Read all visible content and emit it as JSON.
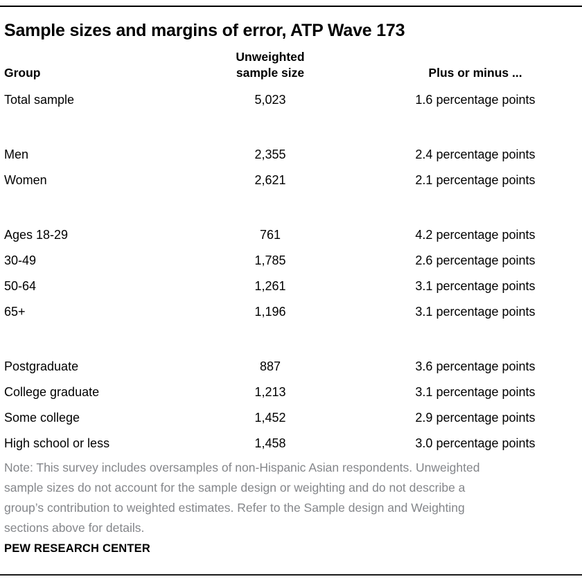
{
  "title": "Sample sizes and margins of error, ATP Wave 173",
  "columns": {
    "group": "Group",
    "n": "Unweighted\nsample size",
    "moe": "Plus or minus ..."
  },
  "rows": [
    {
      "group": "Total sample",
      "n": "5,023",
      "moe": "1.6 percentage points"
    },
    {
      "group": "Men",
      "n": "2,355",
      "moe": "2.4 percentage points"
    },
    {
      "group": "Women",
      "n": "2,621",
      "moe": "2.1 percentage points"
    },
    {
      "group": "Ages 18-29",
      "n": "761",
      "moe": "4.2 percentage points"
    },
    {
      "group": "30-49",
      "n": "1,785",
      "moe": "2.6 percentage points"
    },
    {
      "group": "50-64",
      "n": "1,261",
      "moe": "3.1 percentage points"
    },
    {
      "group": "65+",
      "n": "1,196",
      "moe": "3.1 percentage points"
    },
    {
      "group": "Postgraduate",
      "n": "887",
      "moe": "3.6 percentage points"
    },
    {
      "group": "College graduate",
      "n": "1,213",
      "moe": "3.1 percentage points"
    },
    {
      "group": "Some college",
      "n": "1,452",
      "moe": "2.9 percentage points"
    },
    {
      "group": "High school or less",
      "n": "1,458",
      "moe": "3.0 percentage points"
    }
  ],
  "note": "Note: This survey includes oversamples of non-Hispanic Asian respondents. Unweighted\nsample sizes do not account for the sample design or weighting and do not describe a\ngroup’s contribution to weighted estimates. Refer to the Sample design and Weighting\nsections above for details.",
  "source": "PEW RESEARCH CENTER",
  "colors": {
    "text": "#000000",
    "note_gray": "#84868a",
    "rule": "#000000",
    "background": "#ffffff"
  },
  "chart_data": {
    "type": "table",
    "title": "Sample sizes and margins of error, ATP Wave 173",
    "columns": [
      "Group",
      "Unweighted sample size",
      "Plus or minus ..."
    ],
    "moe_unit": "percentage points",
    "sections": [
      {
        "rows": [
          [
            "Total sample",
            5023,
            1.6
          ]
        ]
      },
      {
        "rows": [
          [
            "Men",
            2355,
            2.4
          ],
          [
            "Women",
            2621,
            2.1
          ]
        ]
      },
      {
        "rows": [
          [
            "Ages 18-29",
            761,
            4.2
          ],
          [
            "30-49",
            1785,
            2.6
          ],
          [
            "50-64",
            1261,
            3.1
          ],
          [
            "65+",
            1196,
            3.1
          ]
        ]
      },
      {
        "rows": [
          [
            "Postgraduate",
            887,
            3.6
          ],
          [
            "College graduate",
            1213,
            3.1
          ],
          [
            "Some college",
            1452,
            2.9
          ],
          [
            "High school or less",
            1458,
            3.0
          ]
        ]
      }
    ]
  }
}
